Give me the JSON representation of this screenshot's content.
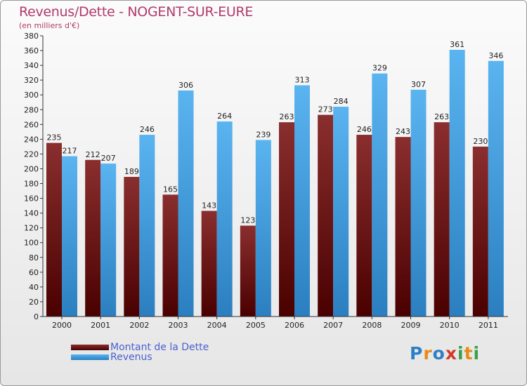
{
  "title": "Revenus/Dette - NOGENT-SUR-EURE",
  "subtitle": "(en milliers d'€)",
  "logo": {
    "letters": [
      {
        "ch": "P",
        "color": "#2f7fc8"
      },
      {
        "ch": "r",
        "color": "#e88a1a"
      },
      {
        "ch": "o",
        "color": "#2f7fc8"
      },
      {
        "ch": "x",
        "color": "#d23a2a"
      },
      {
        "ch": "i",
        "color": "#3aa04a"
      },
      {
        "ch": "t",
        "color": "#e88a1a"
      },
      {
        "ch": "i",
        "color": "#3aa04a"
      }
    ]
  },
  "legend": [
    {
      "label": "Montant de la Dette",
      "color": "#6b1212"
    },
    {
      "label": "Revenus",
      "color": "#4aa3e6"
    }
  ],
  "chart_data": {
    "type": "bar",
    "categories": [
      "2000",
      "2001",
      "2002",
      "2003",
      "2004",
      "2005",
      "2006",
      "2007",
      "2008",
      "2009",
      "2010",
      "2011"
    ],
    "series": [
      {
        "name": "Montant de la Dette",
        "color": "#6b1212",
        "values": [
          235,
          212,
          189,
          165,
          143,
          123,
          263,
          273,
          246,
          243,
          263,
          230
        ]
      },
      {
        "name": "Revenus",
        "color": "#4aa3e6",
        "values": [
          217,
          207,
          246,
          306,
          264,
          239,
          313,
          284,
          329,
          307,
          361,
          346
        ]
      }
    ],
    "ylim": [
      0,
      380
    ],
    "ytick_step": 20,
    "grid": false,
    "legend_position": "bottom-left"
  }
}
